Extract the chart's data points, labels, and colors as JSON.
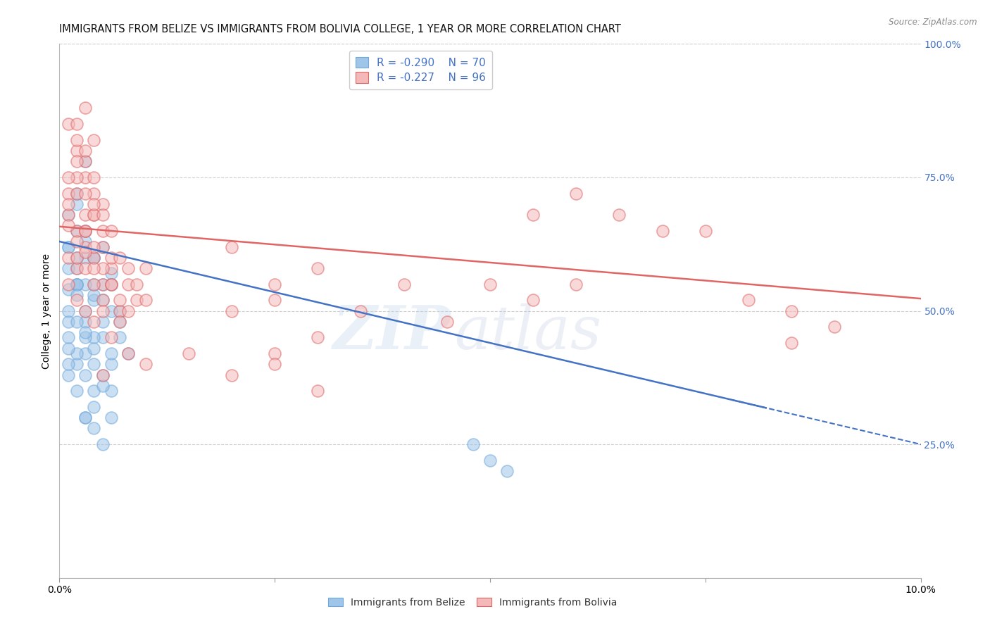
{
  "title": "IMMIGRANTS FROM BELIZE VS IMMIGRANTS FROM BOLIVIA COLLEGE, 1 YEAR OR MORE CORRELATION CHART",
  "source": "Source: ZipAtlas.com",
  "xlabel_belize": "Immigrants from Belize",
  "xlabel_bolivia": "Immigrants from Bolivia",
  "ylabel": "College, 1 year or more",
  "xlim": [
    0.0,
    0.1
  ],
  "ylim": [
    0.0,
    1.0
  ],
  "right_yticks": [
    1.0,
    0.75,
    0.5,
    0.25
  ],
  "right_yticklabels": [
    "100.0%",
    "75.0%",
    "50.0%",
    "25.0%"
  ],
  "belize_color": "#9fc5e8",
  "bolivia_color": "#f4b8b8",
  "belize_edge_color": "#6fa8dc",
  "bolivia_edge_color": "#e06666",
  "belize_line_color": "#4472c4",
  "bolivia_line_color": "#e06666",
  "legend_text_color": "#4472c4",
  "legend_R_belize": "R = -0.290",
  "legend_N_belize": "N = 70",
  "legend_R_bolivia": "R = -0.227",
  "legend_N_bolivia": "N = 96",
  "belize_intercept": 0.63,
  "belize_slope": -3.8,
  "bolivia_intercept": 0.658,
  "bolivia_slope": -1.35,
  "grid_color": "#d0d0d0",
  "background_color": "#ffffff",
  "title_fontsize": 10.5,
  "axis_label_fontsize": 10,
  "tick_fontsize": 10,
  "right_tick_color": "#4472c4",
  "belize_scatter": [
    [
      0.001,
      0.62
    ],
    [
      0.002,
      0.58
    ],
    [
      0.001,
      0.54
    ],
    [
      0.003,
      0.6
    ],
    [
      0.002,
      0.65
    ],
    [
      0.001,
      0.5
    ],
    [
      0.004,
      0.55
    ],
    [
      0.003,
      0.48
    ],
    [
      0.005,
      0.52
    ],
    [
      0.002,
      0.7
    ],
    [
      0.003,
      0.63
    ],
    [
      0.001,
      0.45
    ],
    [
      0.004,
      0.6
    ],
    [
      0.006,
      0.57
    ],
    [
      0.002,
      0.4
    ],
    [
      0.003,
      0.42
    ],
    [
      0.005,
      0.45
    ],
    [
      0.007,
      0.5
    ],
    [
      0.004,
      0.35
    ],
    [
      0.006,
      0.4
    ],
    [
      0.001,
      0.68
    ],
    [
      0.002,
      0.72
    ],
    [
      0.003,
      0.78
    ],
    [
      0.002,
      0.55
    ],
    [
      0.001,
      0.48
    ],
    [
      0.004,
      0.52
    ],
    [
      0.002,
      0.6
    ],
    [
      0.003,
      0.65
    ],
    [
      0.001,
      0.58
    ],
    [
      0.005,
      0.48
    ],
    [
      0.002,
      0.42
    ],
    [
      0.003,
      0.38
    ],
    [
      0.004,
      0.45
    ],
    [
      0.006,
      0.55
    ],
    [
      0.007,
      0.48
    ],
    [
      0.008,
      0.42
    ],
    [
      0.005,
      0.38
    ],
    [
      0.006,
      0.35
    ],
    [
      0.003,
      0.3
    ],
    [
      0.004,
      0.32
    ],
    [
      0.001,
      0.38
    ],
    [
      0.002,
      0.35
    ],
    [
      0.003,
      0.3
    ],
    [
      0.004,
      0.28
    ],
    [
      0.005,
      0.25
    ],
    [
      0.006,
      0.3
    ],
    [
      0.004,
      0.6
    ],
    [
      0.005,
      0.62
    ],
    [
      0.003,
      0.55
    ],
    [
      0.002,
      0.48
    ],
    [
      0.001,
      0.43
    ],
    [
      0.002,
      0.55
    ],
    [
      0.003,
      0.5
    ],
    [
      0.004,
      0.53
    ],
    [
      0.005,
      0.55
    ],
    [
      0.006,
      0.5
    ],
    [
      0.007,
      0.45
    ],
    [
      0.048,
      0.25
    ],
    [
      0.05,
      0.22
    ],
    [
      0.052,
      0.2
    ],
    [
      0.002,
      0.55
    ],
    [
      0.003,
      0.45
    ],
    [
      0.001,
      0.4
    ],
    [
      0.004,
      0.4
    ],
    [
      0.001,
      0.62
    ],
    [
      0.002,
      0.53
    ],
    [
      0.003,
      0.46
    ],
    [
      0.004,
      0.43
    ],
    [
      0.005,
      0.36
    ],
    [
      0.006,
      0.42
    ]
  ],
  "bolivia_scatter": [
    [
      0.001,
      0.72
    ],
    [
      0.002,
      0.8
    ],
    [
      0.003,
      0.75
    ],
    [
      0.001,
      0.68
    ],
    [
      0.002,
      0.65
    ],
    [
      0.001,
      0.7
    ],
    [
      0.003,
      0.78
    ],
    [
      0.004,
      0.72
    ],
    [
      0.002,
      0.58
    ],
    [
      0.003,
      0.62
    ],
    [
      0.004,
      0.68
    ],
    [
      0.005,
      0.65
    ],
    [
      0.001,
      0.6
    ],
    [
      0.002,
      0.75
    ],
    [
      0.003,
      0.68
    ],
    [
      0.004,
      0.6
    ],
    [
      0.005,
      0.55
    ],
    [
      0.006,
      0.58
    ],
    [
      0.002,
      0.82
    ],
    [
      0.001,
      0.85
    ],
    [
      0.003,
      0.8
    ],
    [
      0.004,
      0.75
    ],
    [
      0.005,
      0.7
    ],
    [
      0.003,
      0.65
    ],
    [
      0.002,
      0.72
    ],
    [
      0.004,
      0.68
    ],
    [
      0.005,
      0.62
    ],
    [
      0.006,
      0.6
    ],
    [
      0.003,
      0.58
    ],
    [
      0.004,
      0.55
    ],
    [
      0.005,
      0.52
    ],
    [
      0.006,
      0.55
    ],
    [
      0.007,
      0.5
    ],
    [
      0.008,
      0.55
    ],
    [
      0.009,
      0.52
    ],
    [
      0.01,
      0.58
    ],
    [
      0.002,
      0.6
    ],
    [
      0.003,
      0.65
    ],
    [
      0.004,
      0.62
    ],
    [
      0.005,
      0.58
    ],
    [
      0.006,
      0.55
    ],
    [
      0.007,
      0.52
    ],
    [
      0.008,
      0.5
    ],
    [
      0.02,
      0.62
    ],
    [
      0.025,
      0.55
    ],
    [
      0.03,
      0.58
    ],
    [
      0.025,
      0.52
    ],
    [
      0.035,
      0.5
    ],
    [
      0.04,
      0.55
    ],
    [
      0.045,
      0.48
    ],
    [
      0.05,
      0.55
    ],
    [
      0.055,
      0.52
    ],
    [
      0.06,
      0.55
    ],
    [
      0.065,
      0.68
    ],
    [
      0.07,
      0.65
    ],
    [
      0.075,
      0.65
    ],
    [
      0.08,
      0.52
    ],
    [
      0.085,
      0.5
    ],
    [
      0.09,
      0.47
    ],
    [
      0.001,
      0.55
    ],
    [
      0.002,
      0.52
    ],
    [
      0.003,
      0.5
    ],
    [
      0.004,
      0.48
    ],
    [
      0.005,
      0.5
    ],
    [
      0.006,
      0.45
    ],
    [
      0.007,
      0.48
    ],
    [
      0.008,
      0.42
    ],
    [
      0.02,
      0.5
    ],
    [
      0.025,
      0.42
    ],
    [
      0.03,
      0.45
    ],
    [
      0.005,
      0.38
    ],
    [
      0.01,
      0.4
    ],
    [
      0.015,
      0.42
    ],
    [
      0.02,
      0.38
    ],
    [
      0.025,
      0.4
    ],
    [
      0.03,
      0.35
    ],
    [
      0.002,
      0.85
    ],
    [
      0.003,
      0.88
    ],
    [
      0.004,
      0.82
    ],
    [
      0.055,
      0.68
    ],
    [
      0.06,
      0.72
    ],
    [
      0.001,
      0.75
    ],
    [
      0.002,
      0.78
    ],
    [
      0.003,
      0.72
    ],
    [
      0.004,
      0.7
    ],
    [
      0.005,
      0.68
    ],
    [
      0.006,
      0.65
    ],
    [
      0.007,
      0.6
    ],
    [
      0.008,
      0.58
    ],
    [
      0.009,
      0.55
    ],
    [
      0.01,
      0.52
    ],
    [
      0.085,
      0.44
    ],
    [
      0.001,
      0.66
    ],
    [
      0.002,
      0.63
    ],
    [
      0.003,
      0.61
    ],
    [
      0.004,
      0.58
    ]
  ]
}
